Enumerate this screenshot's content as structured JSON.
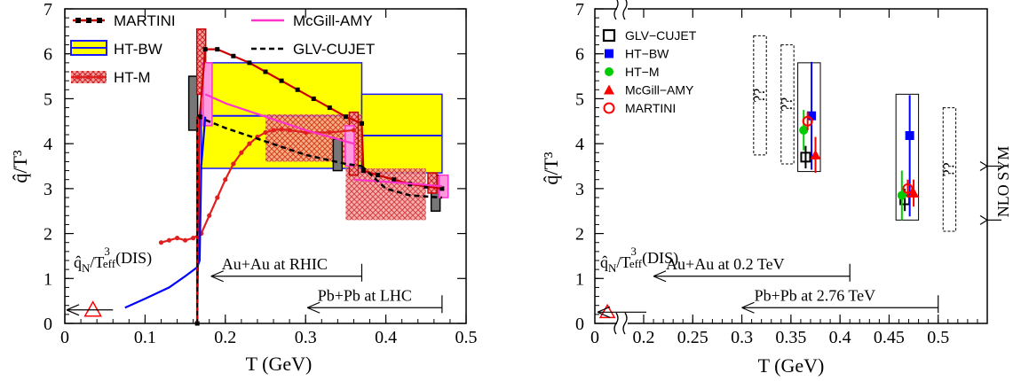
{
  "chart_data": [
    {
      "type": "line",
      "panel": "left",
      "xlabel": "T (GeV)",
      "ylabel": "q̂/T³",
      "xlim": [
        0,
        0.5
      ],
      "ylim": [
        0,
        7
      ],
      "xticks": [
        "0",
        "0.1",
        "0.2",
        "0.3",
        "0.4",
        "0.5"
      ],
      "yticks": [
        "0",
        "1",
        "2",
        "3",
        "4",
        "5",
        "6",
        "7"
      ],
      "legend": [
        "MARTINI",
        "HT-BW",
        "HT-M",
        "McGill-AMY",
        "GLV-CUJET"
      ],
      "series": [
        {
          "name": "MARTINI",
          "color": "#cc0000",
          "x": [
            0.165,
            0.168,
            0.175,
            0.19,
            0.21,
            0.23,
            0.25,
            0.27,
            0.29,
            0.31,
            0.33,
            0.35,
            0.37,
            0.372,
            0.39,
            0.41,
            0.43,
            0.45,
            0.47
          ],
          "y": [
            0.0,
            4.6,
            6.1,
            6.1,
            5.95,
            5.8,
            5.6,
            5.4,
            5.2,
            5.0,
            4.8,
            4.6,
            4.45,
            3.4,
            3.3,
            3.2,
            3.1,
            3.05,
            3.0
          ]
        },
        {
          "name": "HT-M line",
          "color": "#e02020",
          "x": [
            0.12,
            0.13,
            0.14,
            0.15,
            0.16,
            0.17,
            0.18,
            0.19,
            0.2,
            0.21,
            0.22,
            0.23,
            0.24,
            0.25,
            0.26,
            0.27,
            0.28,
            0.3,
            0.33,
            0.36
          ],
          "y": [
            1.8,
            1.85,
            1.9,
            1.85,
            1.9,
            2.0,
            2.4,
            2.8,
            3.2,
            3.55,
            3.8,
            4.0,
            4.15,
            4.25,
            4.3,
            4.32,
            4.3,
            4.25,
            4.25,
            4.3
          ]
        },
        {
          "name": "McGill-AMY",
          "color": "#ff33cc",
          "x": [
            0.175,
            0.2,
            0.25,
            0.3,
            0.34,
            0.36
          ],
          "y": [
            5.1,
            4.9,
            4.6,
            4.3,
            4.1,
            4.0
          ]
        },
        {
          "name": "McGill-AMY high T",
          "color": "#ff33cc",
          "x": [
            0.36,
            0.4,
            0.44,
            0.47
          ],
          "y": [
            3.2,
            3.15,
            3.1,
            3.05
          ]
        },
        {
          "name": "GLV-CUJET",
          "color": "#000000",
          "x": [
            0.165,
            0.2,
            0.25,
            0.3,
            0.35,
            0.37
          ],
          "y": [
            4.6,
            4.35,
            4.05,
            3.75,
            3.55,
            3.5
          ]
        },
        {
          "name": "GLV-CUJET high T",
          "color": "#000000",
          "x": [
            0.37,
            0.4,
            0.43,
            0.47
          ],
          "y": [
            3.5,
            3.0,
            2.85,
            2.8
          ]
        },
        {
          "name": "blue curve",
          "color": "#0000ff",
          "x": [
            0.075,
            0.1,
            0.13,
            0.15,
            0.165,
            0.168,
            0.17,
            0.175
          ],
          "y": [
            0.35,
            0.55,
            0.8,
            1.05,
            1.25,
            1.4,
            3.5,
            4.6
          ]
        }
      ],
      "bands": [
        {
          "name": "HT-BW RHIC",
          "x": [
            0.17,
            0.37
          ],
          "y": [
            3.45,
            5.8
          ],
          "center": 4.62
        },
        {
          "name": "HT-BW LHC",
          "x": [
            0.37,
            0.47
          ],
          "y": [
            3.35,
            5.1
          ],
          "center": 4.18
        },
        {
          "name": "HT-M RHIC",
          "x": [
            0.25,
            0.37
          ],
          "y": [
            3.6,
            4.65
          ]
        },
        {
          "name": "HT-M LHC",
          "x": [
            0.35,
            0.45
          ],
          "y": [
            2.3,
            3.45
          ]
        }
      ],
      "annotations": {
        "dis_label": "q̂N/T³eff(DIS)",
        "dis_point": [
          0.035,
          0.3
        ],
        "rhic_label": "Au+Au at RHIC",
        "rhic_range": [
          0.18,
          0.37
        ],
        "lhc_label": "Pb+Pb at LHC",
        "lhc_range": [
          0.3,
          0.47
        ]
      }
    },
    {
      "type": "scatter",
      "panel": "right",
      "xlabel": "T (GeV)",
      "ylabel": "q̂/T³",
      "xlim": [
        0,
        0.55
      ],
      "ylim": [
        0,
        7
      ],
      "xticks": [
        "0",
        "0.2",
        "0.25",
        "0.3",
        "0.35",
        "0.4",
        "0.45",
        "0.5"
      ],
      "yticks": [
        "0",
        "1",
        "2",
        "3",
        "4",
        "5",
        "6",
        "7"
      ],
      "legend": [
        "GLV−CUJET",
        "HT−BW",
        "HT−M",
        "McGill−AMY",
        "MARTINI"
      ],
      "points": [
        {
          "name": "GLV−CUJET",
          "color": "#000000",
          "marker": "open-square",
          "x": [
            0.365,
            0.466
          ],
          "y": [
            3.7,
            2.75
          ],
          "err": [
            0.25,
            0.25
          ]
        },
        {
          "name": "HT−BW",
          "color": "#0000ff",
          "marker": "square",
          "x": [
            0.371,
            0.471
          ],
          "y": [
            4.62,
            4.18
          ],
          "err_lo": [
            1.2,
            1.8
          ],
          "err_hi": [
            1.2,
            0.9
          ]
        },
        {
          "name": "HT−M",
          "color": "#00cc00",
          "marker": "circle",
          "x": [
            0.363,
            0.463
          ],
          "y": [
            4.3,
            2.85
          ],
          "err": [
            0.45,
            0.55
          ]
        },
        {
          "name": "McGill−AMY",
          "color": "#ff0000",
          "marker": "triangle",
          "x": [
            0.375,
            0.475
          ],
          "y": [
            3.75,
            2.9
          ],
          "err": [
            0.4,
            0.3
          ]
        },
        {
          "name": "MARTINI",
          "color": "#ff0000",
          "marker": "open-circle",
          "x": [
            0.367,
            0.469
          ],
          "y": [
            4.5,
            3.0
          ],
          "err": [
            0.2,
            0.2
          ]
        }
      ],
      "boxes": [
        {
          "x": [
            0.357,
            0.38
          ],
          "y": [
            3.38,
            5.8
          ]
        },
        {
          "x": [
            0.457,
            0.48
          ],
          "y": [
            2.3,
            5.1
          ]
        }
      ],
      "dashed_boxes": [
        {
          "x": [
            0.312,
            0.325
          ],
          "y": [
            3.75,
            6.4
          ],
          "label": "??"
        },
        {
          "x": [
            0.34,
            0.353
          ],
          "y": [
            3.55,
            6.2
          ],
          "label": "??"
        },
        {
          "x": [
            0.505,
            0.518
          ],
          "y": [
            2.05,
            4.8
          ],
          "label": "??"
        }
      ],
      "annotations": {
        "dis_label": "q̂N/T³eff(DIS)",
        "dis_point": [
          0.015,
          0.25
        ],
        "rhic_label": "Au+Au at 0.2 TeV",
        "lhc_label": "Pb+Pb at 2.76 TeV",
        "nlo_label": "NLO SYM",
        "nlo_values": [
          3.5,
          2.3
        ]
      }
    }
  ]
}
